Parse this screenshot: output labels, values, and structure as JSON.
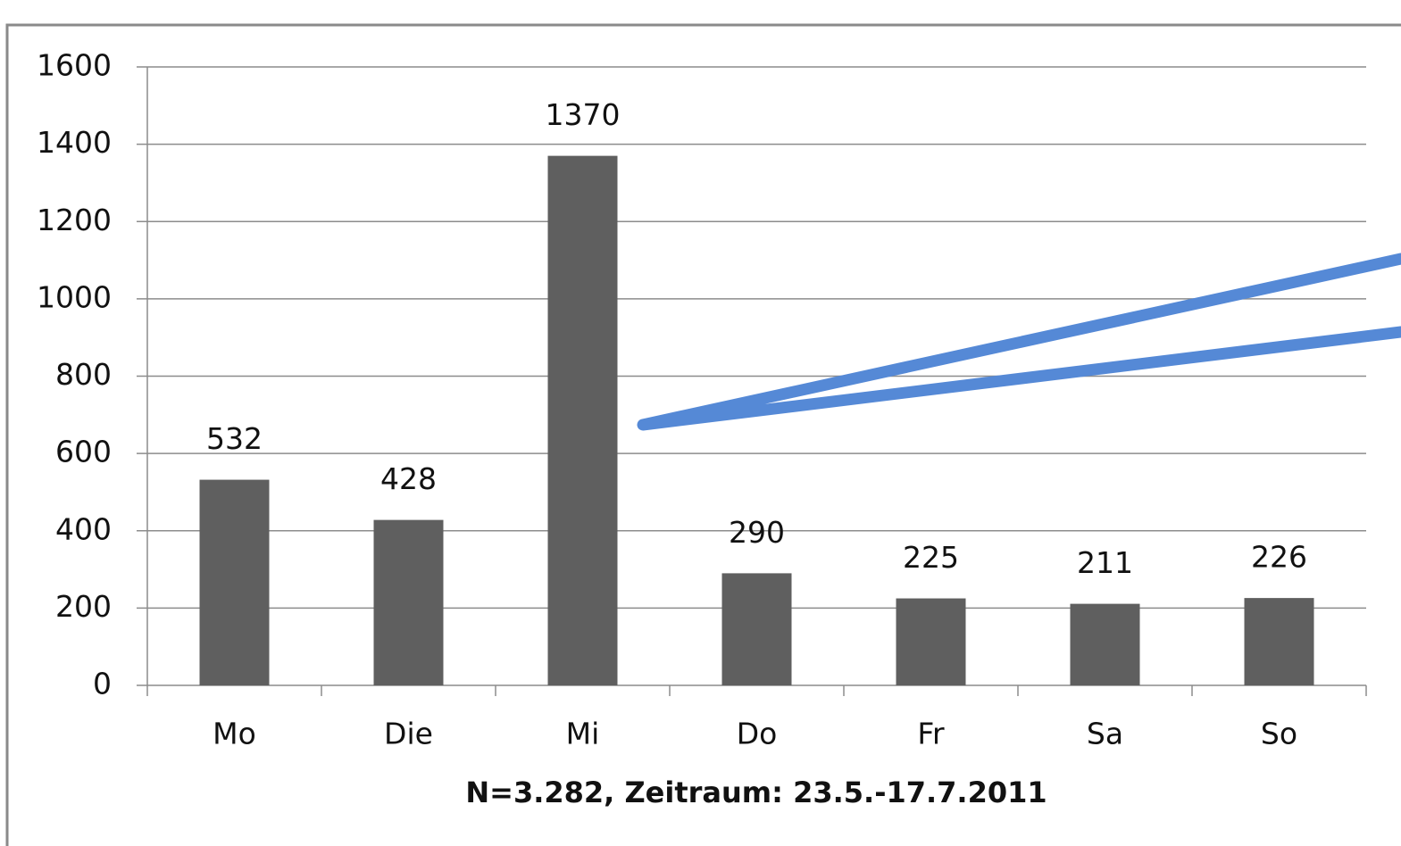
{
  "chart_data": {
    "type": "bar",
    "categories": [
      "Mo",
      "Die",
      "Mi",
      "Do",
      "Fr",
      "Sa",
      "So"
    ],
    "values": [
      532,
      428,
      1370,
      290,
      225,
      211,
      226
    ],
    "color": "#5f5f5f",
    "x_label": "N=3.282, Zeitraum: 23.5.-17.7.2011",
    "ylim": [
      0,
      1600
    ],
    "yticks": [
      0,
      200,
      400,
      600,
      800,
      1000,
      1200,
      1400,
      1600
    ],
    "grid": true
  }
}
